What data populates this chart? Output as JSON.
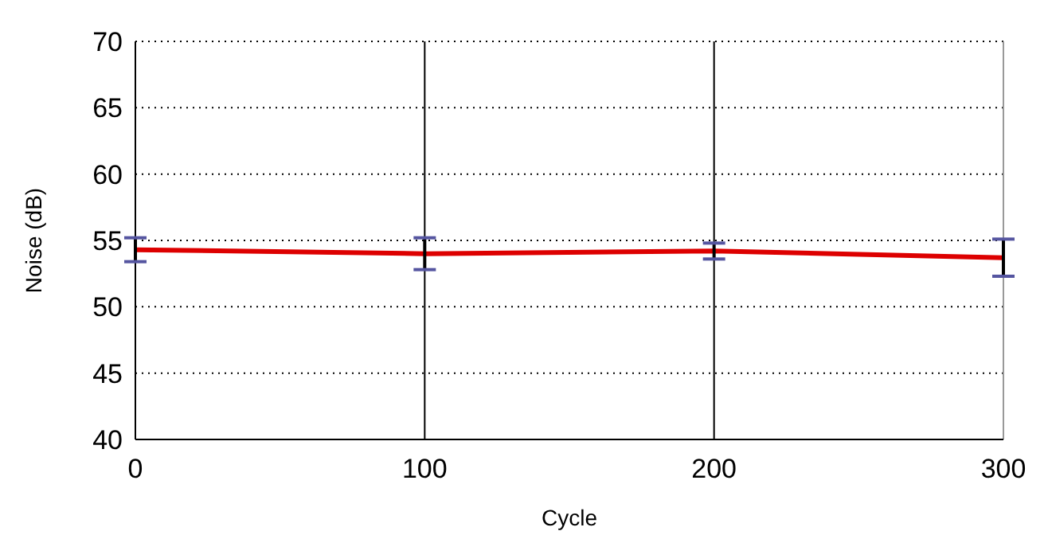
{
  "chart_data": {
    "type": "line",
    "xlabel": "Cycle",
    "ylabel": "Noise (dB)",
    "x": [
      0,
      100,
      200,
      300
    ],
    "series": [
      {
        "color": "#dd0000",
        "values": [
          54.3,
          54.0,
          54.2,
          53.7
        ],
        "errors": [
          0.9,
          1.2,
          0.6,
          1.4
        ]
      }
    ],
    "xlim": [
      0,
      300
    ],
    "xticks": [
      0,
      100,
      200,
      300
    ],
    "ylim": [
      40,
      70
    ],
    "yticks": [
      40,
      45,
      50,
      55,
      60,
      65,
      70
    ],
    "grid": true,
    "marker": "none",
    "line_style": "solid"
  }
}
